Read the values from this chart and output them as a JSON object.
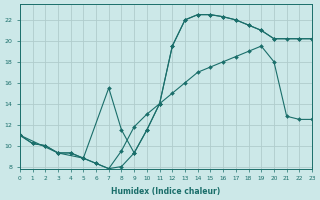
{
  "xlabel": "Humidex (Indice chaleur)",
  "xlim": [
    0,
    23
  ],
  "ylim": [
    8,
    23
  ],
  "yticks": [
    8,
    10,
    12,
    14,
    16,
    18,
    20,
    22
  ],
  "xticks": [
    0,
    1,
    2,
    3,
    4,
    5,
    6,
    7,
    8,
    9,
    10,
    11,
    12,
    13,
    14,
    15,
    16,
    17,
    18,
    19,
    20,
    21,
    22,
    23
  ],
  "bg_color": "#cce8e8",
  "grid_color": "#b8d8d8",
  "line_color": "#1a6e6a",
  "line1_x": [
    0,
    1,
    2,
    3,
    4,
    5,
    6,
    7,
    8,
    9,
    10,
    11,
    12,
    13,
    14,
    15,
    16,
    17,
    18,
    19,
    20,
    21,
    22,
    23
  ],
  "line1_y": [
    11,
    10.2,
    10,
    9.3,
    9.3,
    8.8,
    8.3,
    7.8,
    9.5,
    11.8,
    13.0,
    14.0,
    15.0,
    16.0,
    17.0,
    17.5,
    18.0,
    18.5,
    19.0,
    19.5,
    18.0,
    12.8,
    12.5,
    12.5
  ],
  "line2_x": [
    0,
    1,
    2,
    3,
    4,
    5,
    6,
    7,
    8,
    9,
    10,
    11,
    12,
    13,
    14,
    15,
    16,
    17,
    18,
    19,
    20,
    21,
    22,
    23
  ],
  "line2_y": [
    11,
    10.2,
    10,
    9.3,
    9.3,
    8.8,
    8.3,
    7.8,
    8.0,
    9.3,
    11.5,
    14.0,
    19.5,
    22.0,
    22.5,
    22.5,
    22.3,
    22.0,
    21.5,
    21.0,
    20.2,
    20.2,
    20.2,
    20.2
  ],
  "line3_x": [
    0,
    3,
    5,
    7,
    8,
    9,
    10,
    11,
    12,
    13,
    14,
    15,
    16,
    17,
    18,
    19,
    20,
    22,
    23
  ],
  "line3_y": [
    11,
    9.3,
    8.8,
    15.5,
    11.5,
    9.3,
    11.5,
    14.0,
    19.5,
    22.0,
    22.5,
    22.5,
    22.3,
    22.0,
    21.5,
    21.0,
    20.2,
    20.2,
    20.2
  ]
}
